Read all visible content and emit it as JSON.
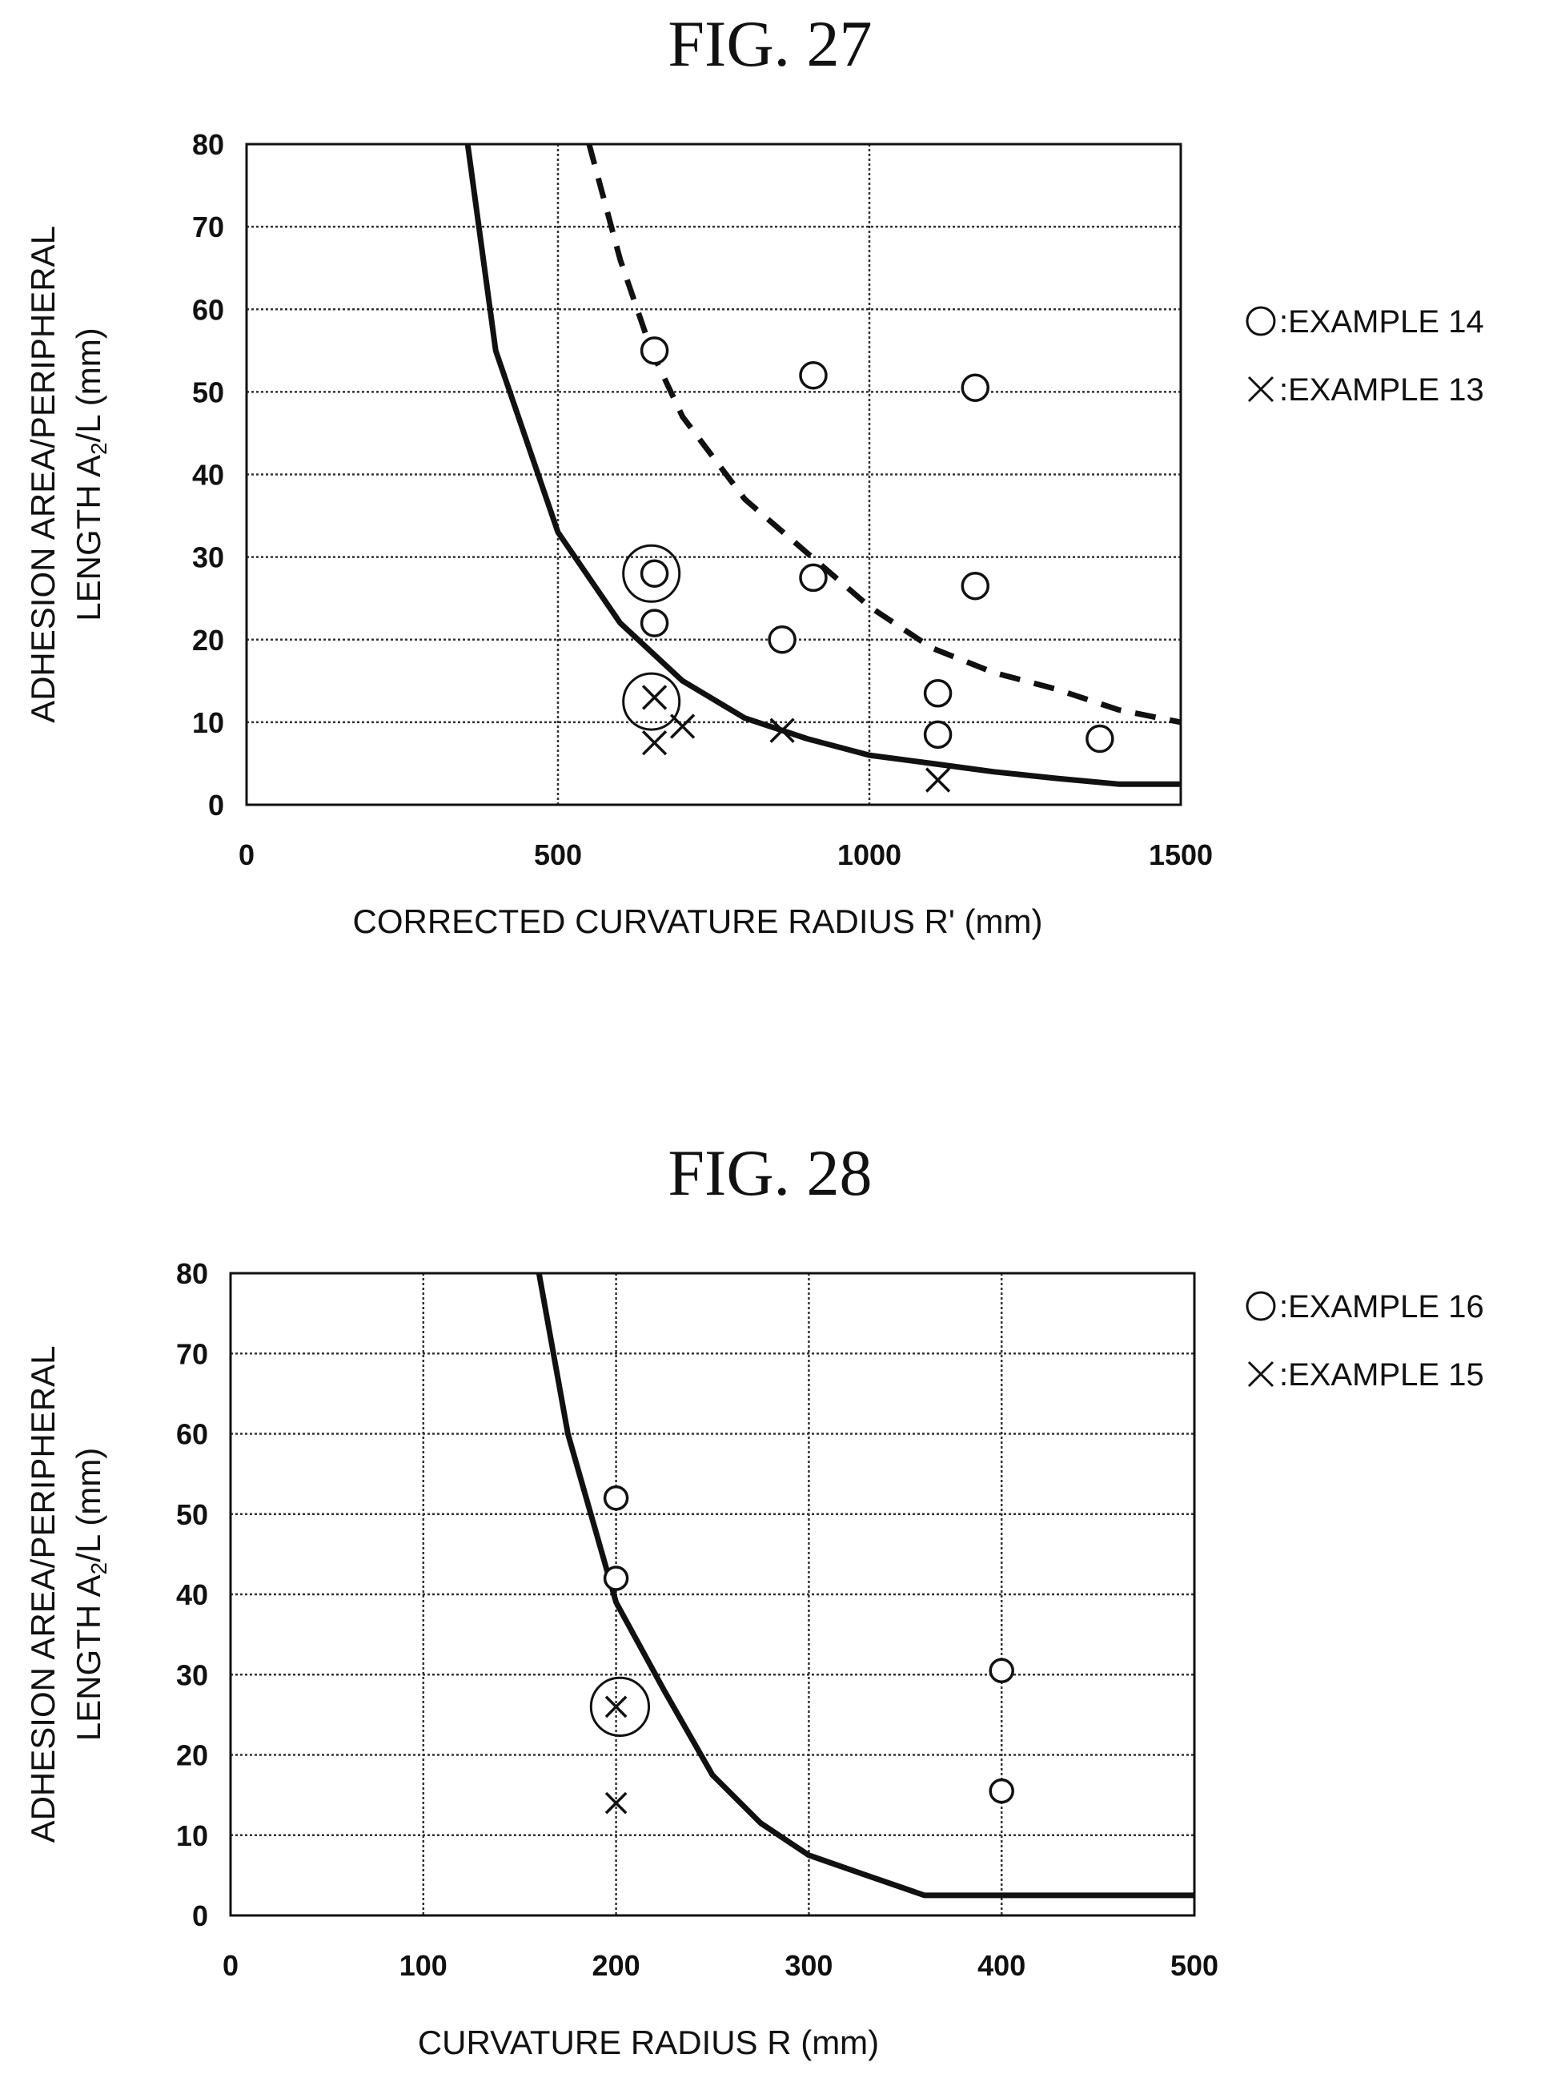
{
  "figures": [
    {
      "title": "FIG. 27"
    },
    {
      "title": "FIG. 28"
    }
  ],
  "chart_data": [
    {
      "type": "scatter",
      "title": "FIG. 27",
      "xlabel": "CORRECTED  CURVATURE  RADIUS    R' (mm)",
      "ylabel_line1": "ADHESION AREA/PERIPHERAL",
      "ylabel_line2": "LENGTH A",
      "ylabel_sub": "2",
      "ylabel_line2_end": "/L (mm)",
      "xlim": [
        0,
        1500
      ],
      "ylim": [
        0,
        80
      ],
      "x_ticks": [
        "0",
        "500",
        "1000",
        "1500"
      ],
      "y_ticks": [
        "0",
        "10",
        "20",
        "30",
        "40",
        "50",
        "60",
        "70",
        "80"
      ],
      "grid": true,
      "legend_placement": "right",
      "legend": [
        {
          "symbol": "○",
          "label": ":EXAMPLE 14"
        },
        {
          "symbol": "✕",
          "label": ":EXAMPLE 13"
        }
      ],
      "series": [
        {
          "marker": "circle",
          "points": [
            [
              655,
              55
            ],
            [
              910,
              52
            ],
            [
              1170,
              50.5
            ],
            [
              655,
              28
            ],
            [
              910,
              27.5
            ],
            [
              1170,
              26.5
            ],
            [
              655,
              22
            ],
            [
              860,
              20
            ],
            [
              1110,
              13.5
            ],
            [
              1110,
              8.5
            ],
            [
              1370,
              8
            ]
          ]
        },
        {
          "marker": "cross",
          "points": [
            [
              655,
              13
            ],
            [
              655,
              7.5
            ],
            [
              700,
              9.5
            ],
            [
              860,
              9
            ],
            [
              1110,
              3
            ]
          ]
        }
      ],
      "highlight_circles": [
        {
          "x": 650,
          "y": 28,
          "r_x_units": 45
        },
        {
          "x": 650,
          "y": 12.5,
          "r_x_units": 45
        }
      ],
      "solid_curve": [
        [
          355,
          80
        ],
        [
          400,
          55
        ],
        [
          500,
          33
        ],
        [
          600,
          22
        ],
        [
          700,
          15
        ],
        [
          800,
          10.5
        ],
        [
          900,
          8
        ],
        [
          1000,
          6
        ],
        [
          1100,
          5
        ],
        [
          1200,
          4
        ],
        [
          1300,
          3.2
        ],
        [
          1400,
          2.5
        ],
        [
          1500,
          2.5
        ]
      ],
      "dashed_curve": [
        [
          550,
          80
        ],
        [
          600,
          66
        ],
        [
          650,
          55
        ],
        [
          700,
          47
        ],
        [
          800,
          37
        ],
        [
          900,
          30.5
        ],
        [
          1000,
          24
        ],
        [
          1100,
          19
        ],
        [
          1200,
          16
        ],
        [
          1300,
          14
        ],
        [
          1400,
          11.5
        ],
        [
          1500,
          10
        ]
      ]
    },
    {
      "type": "scatter",
      "title": "FIG. 28",
      "xlabel": "CURVATURE  RADIUS  R (mm)",
      "ylabel_line1": "ADHESION AREA/PERIPHERAL",
      "ylabel_line2": "LENGTH A",
      "ylabel_sub": "2",
      "ylabel_line2_end": "/L (mm)",
      "xlim": [
        0,
        500
      ],
      "ylim": [
        0,
        80
      ],
      "x_ticks": [
        "0",
        "100",
        "200",
        "300",
        "400",
        "500"
      ],
      "y_ticks": [
        "0",
        "10",
        "20",
        "30",
        "40",
        "50",
        "60",
        "70",
        "80"
      ],
      "grid": true,
      "legend_placement": "right",
      "legend": [
        {
          "symbol": "○",
          "label": ":EXAMPLE 16"
        },
        {
          "symbol": "✕",
          "label": ":EXAMPLE 15"
        }
      ],
      "series": [
        {
          "marker": "circle",
          "points": [
            [
              200,
              52
            ],
            [
              200,
              42
            ],
            [
              400,
              30.5
            ],
            [
              400,
              15.5
            ]
          ]
        },
        {
          "marker": "cross",
          "points": [
            [
              200,
              26
            ],
            [
              200,
              14
            ]
          ]
        }
      ],
      "highlight_circles": [
        {
          "x": 202,
          "y": 26,
          "r_x_units": 15
        }
      ],
      "solid_curve": [
        [
          160,
          80
        ],
        [
          175,
          60
        ],
        [
          200,
          39
        ],
        [
          225,
          28
        ],
        [
          250,
          17.5
        ],
        [
          275,
          11.5
        ],
        [
          300,
          7.5
        ],
        [
          330,
          5
        ],
        [
          360,
          2.5
        ],
        [
          500,
          2.5
        ]
      ]
    }
  ]
}
